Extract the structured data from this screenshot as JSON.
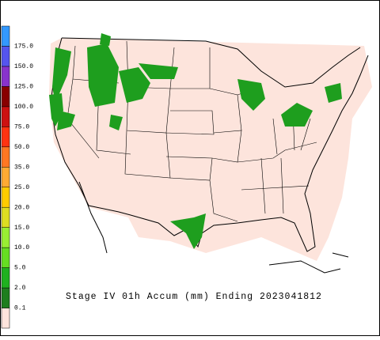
{
  "colorbar": {
    "labels": [
      "0.1",
      "2.0",
      "5.0",
      "10.0",
      "15.0",
      "20.0",
      "25.0",
      "35.0",
      "50.0",
      "75.0",
      "100.0",
      "125.0",
      "150.0",
      "175.0"
    ],
    "colors": [
      "#fde4dc",
      "#1e7e1e",
      "#1fb11f",
      "#66dd22",
      "#99ee33",
      "#dddd22",
      "#ffcc00",
      "#ffaa33",
      "#ff7722",
      "#ff3311",
      "#cc1111",
      "#880000",
      "#8833cc",
      "#5555ee",
      "#3399ff"
    ]
  },
  "title": "Stage IV 01h Accum (mm) Ending 2023041812"
}
